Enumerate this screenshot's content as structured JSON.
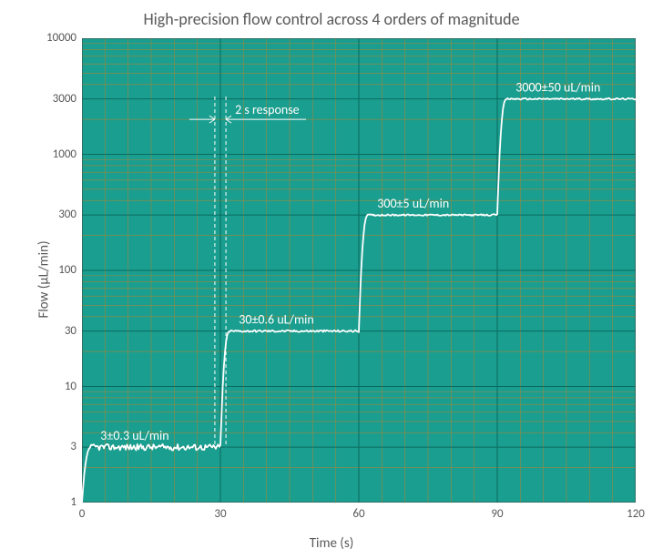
{
  "chart": {
    "type": "line-step-log",
    "title": "High-precision flow control across 4 orders of magnitude",
    "xlabel": "Time (s)",
    "ylabel": "Flow (µL/min)",
    "background_color": "#1a9e8f",
    "grid_major_color": "#0a6b5f",
    "grid_minor_color": "#8a8a4a",
    "axis_color": "#404040",
    "line_color": "#ffffff",
    "line_width": 1.8,
    "title_fontsize": 18,
    "label_fontsize": 15,
    "tick_fontsize": 13,
    "annot_fontsize": 14,
    "xlim": [
      0,
      120
    ],
    "xtick_step": 30,
    "xticks": [
      0,
      30,
      60,
      90,
      120
    ],
    "y_scale": "log",
    "ylim": [
      1,
      10000
    ],
    "yticks": [
      1,
      3,
      10,
      30,
      100,
      300,
      1000,
      3000,
      10000
    ],
    "y_minor_multipliers": [
      2,
      4,
      5,
      6,
      7,
      8,
      9
    ],
    "steps": [
      {
        "time_start": 0,
        "time_end": 30,
        "flow": 3,
        "label": "3±0.3 uL/min",
        "noise_amp": 0.25,
        "rise_s": 2
      },
      {
        "time_start": 30,
        "time_end": 60,
        "flow": 30,
        "label": "30±0.6 uL/min",
        "noise_amp": 0.8,
        "rise_s": 2
      },
      {
        "time_start": 60,
        "time_end": 90,
        "flow": 300,
        "label": "300±5 uL/min",
        "noise_amp": 6,
        "rise_s": 2
      },
      {
        "time_start": 90,
        "time_end": 120,
        "flow": 3000,
        "label": "3000±50 uL/min",
        "noise_amp": 60,
        "rise_s": 2
      }
    ],
    "response_annotation": {
      "text": "2 s response",
      "at_time": 30,
      "span_s": 2
    }
  }
}
